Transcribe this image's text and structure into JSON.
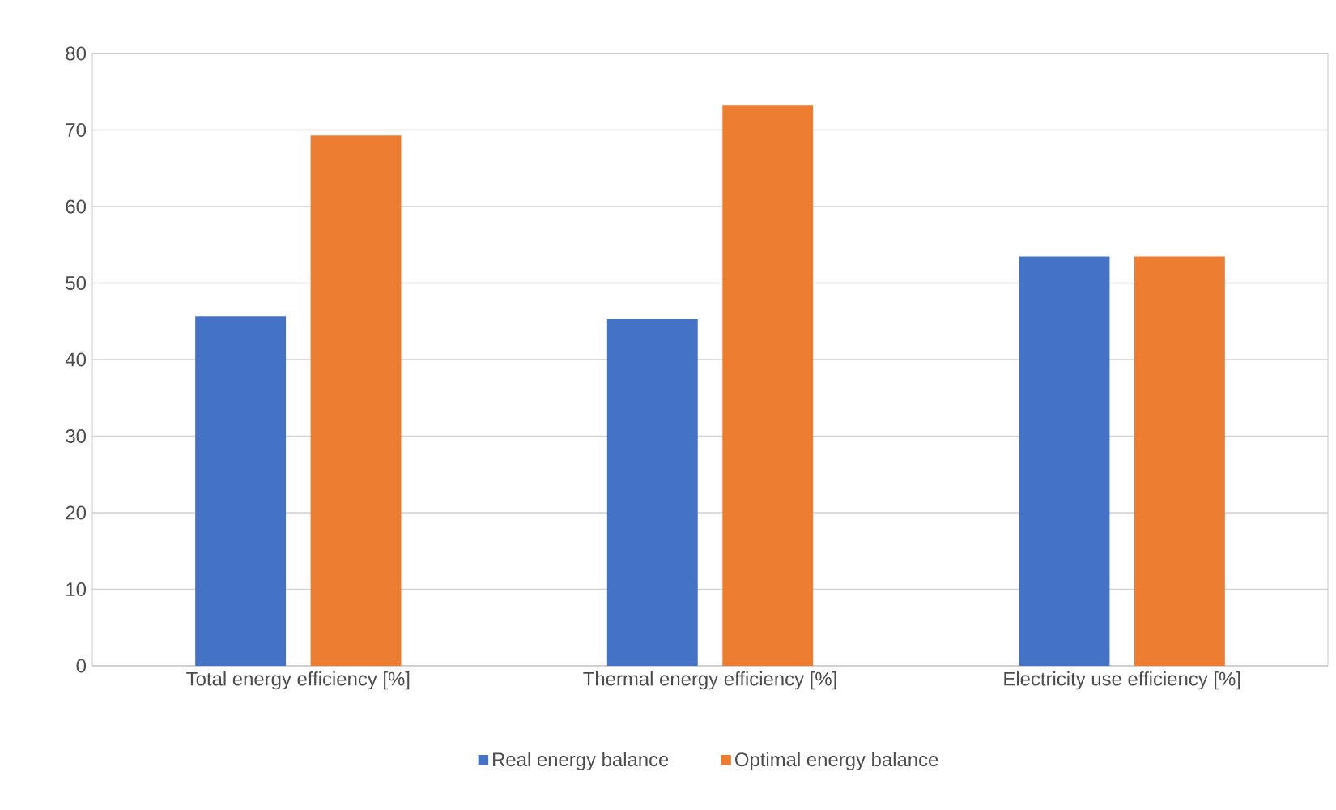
{
  "chart_data": {
    "type": "bar",
    "categories": [
      "Total energy efficiency [%]",
      "Thermal energy efficiency [%]",
      "Electricity use efficiency [%]"
    ],
    "series": [
      {
        "name": "Real energy balance",
        "color": "#4472c4",
        "values": [
          45.7,
          45.3,
          53.5
        ]
      },
      {
        "name": "Optimal energy balance",
        "color": "#ed7d31",
        "values": [
          69.3,
          73.2,
          53.5
        ]
      }
    ],
    "ylim": [
      0,
      80
    ],
    "yticks": [
      0,
      10,
      20,
      30,
      40,
      50,
      60,
      70,
      80
    ],
    "grid": "y",
    "legend": "bottom"
  }
}
